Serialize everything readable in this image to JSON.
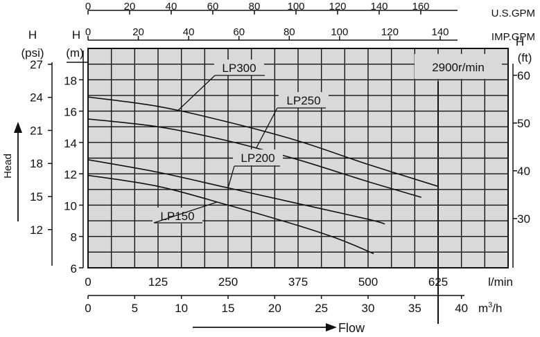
{
  "chart_data": {
    "type": "line",
    "title": "",
    "speed_label": "2900r/min",
    "colors": {
      "plot_bg": "#d9d9d9",
      "grid": "#111111",
      "curve": "#111111",
      "label_bg": "#d9d9d9"
    },
    "x_primary": {
      "label": "l/min",
      "range": [
        0,
        750
      ],
      "ticks": [
        0,
        125,
        250,
        375,
        500,
        625
      ]
    },
    "x_secondary_m3h": {
      "label": "m³/h",
      "unit_base": "m",
      "unit_sup": "3",
      "unit_rest": "/h",
      "ticks": [
        0,
        5,
        10,
        15,
        20,
        25,
        30,
        35,
        40
      ]
    },
    "x_top_usgpm": {
      "label": "U.S.GPM",
      "ticks": [
        0,
        20,
        40,
        60,
        80,
        100,
        120,
        140,
        160
      ]
    },
    "x_top_impgpm": {
      "label": "IMP.GPM",
      "ticks": [
        0,
        20,
        40,
        60,
        80,
        100,
        120,
        140
      ]
    },
    "y_primary": {
      "label": "H",
      "unit": "(m)",
      "range": [
        6,
        20
      ],
      "ticks": [
        6,
        8,
        10,
        12,
        14,
        16,
        18
      ]
    },
    "y_left_psi": {
      "label": "H",
      "unit": "(psi)",
      "ticks": [
        12,
        15,
        18,
        21,
        24,
        27
      ]
    },
    "y_right_ft": {
      "label": "H",
      "unit": "(ft)",
      "ticks": [
        30,
        40,
        50,
        60
      ]
    },
    "axis_titles": {
      "flow": "Flow",
      "head": "Head"
    },
    "series": [
      {
        "name": "LP300",
        "x": [
          0,
          125,
          250,
          375,
          500,
          625
        ],
        "y": [
          16.9,
          16.3,
          15.3,
          14.1,
          12.6,
          11.2
        ]
      },
      {
        "name": "LP250",
        "x": [
          0,
          125,
          250,
          375,
          500,
          595
        ],
        "y": [
          15.5,
          15.0,
          14.1,
          12.9,
          11.5,
          10.5
        ]
      },
      {
        "name": "LP200",
        "x": [
          0,
          125,
          250,
          375,
          500,
          530
        ],
        "y": [
          12.9,
          12.1,
          11.1,
          10.1,
          9.1,
          8.8
        ]
      },
      {
        "name": "LP150",
        "x": [
          0,
          125,
          250,
          375,
          450,
          510
        ],
        "y": [
          11.9,
          11.2,
          10.0,
          8.7,
          7.8,
          6.9
        ]
      }
    ]
  }
}
